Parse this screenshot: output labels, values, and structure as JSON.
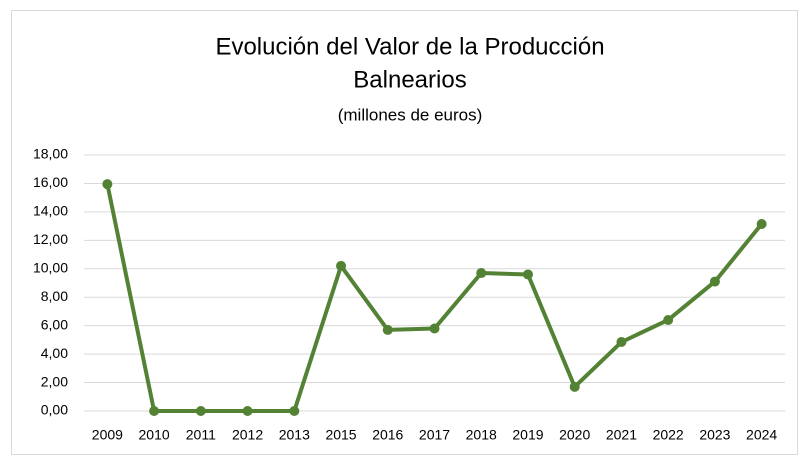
{
  "chart_data": {
    "type": "line",
    "title": [
      "Evolución del Valor de la Producción",
      "Balnearios"
    ],
    "subtitle": "(millones de euros)",
    "categories": [
      "2009",
      "2010",
      "2011",
      "2012",
      "2013",
      "2015",
      "2016",
      "2017",
      "2018",
      "2019",
      "2020",
      "2021",
      "2022",
      "2023",
      "2024"
    ],
    "series": [
      {
        "color": "#548235",
        "values": [
          15.95,
          0,
          0,
          0,
          0,
          10.2,
          5.7,
          5.8,
          9.7,
          9.6,
          1.7,
          4.85,
          6.4,
          9.1,
          13.15
        ]
      }
    ],
    "ylim": [
      0,
      18
    ],
    "yticks": [
      {
        "value": 0,
        "label": "0,00"
      },
      {
        "value": 2,
        "label": "2,00"
      },
      {
        "value": 4,
        "label": "4,00"
      },
      {
        "value": 6,
        "label": "6,00"
      },
      {
        "value": 8,
        "label": "8,00"
      },
      {
        "value": 10,
        "label": "10,00"
      },
      {
        "value": 12,
        "label": "12,00"
      },
      {
        "value": 14,
        "label": "14,00"
      },
      {
        "value": 16,
        "label": "16,00"
      },
      {
        "value": 18,
        "label": "18,00"
      }
    ],
    "grid": true
  }
}
